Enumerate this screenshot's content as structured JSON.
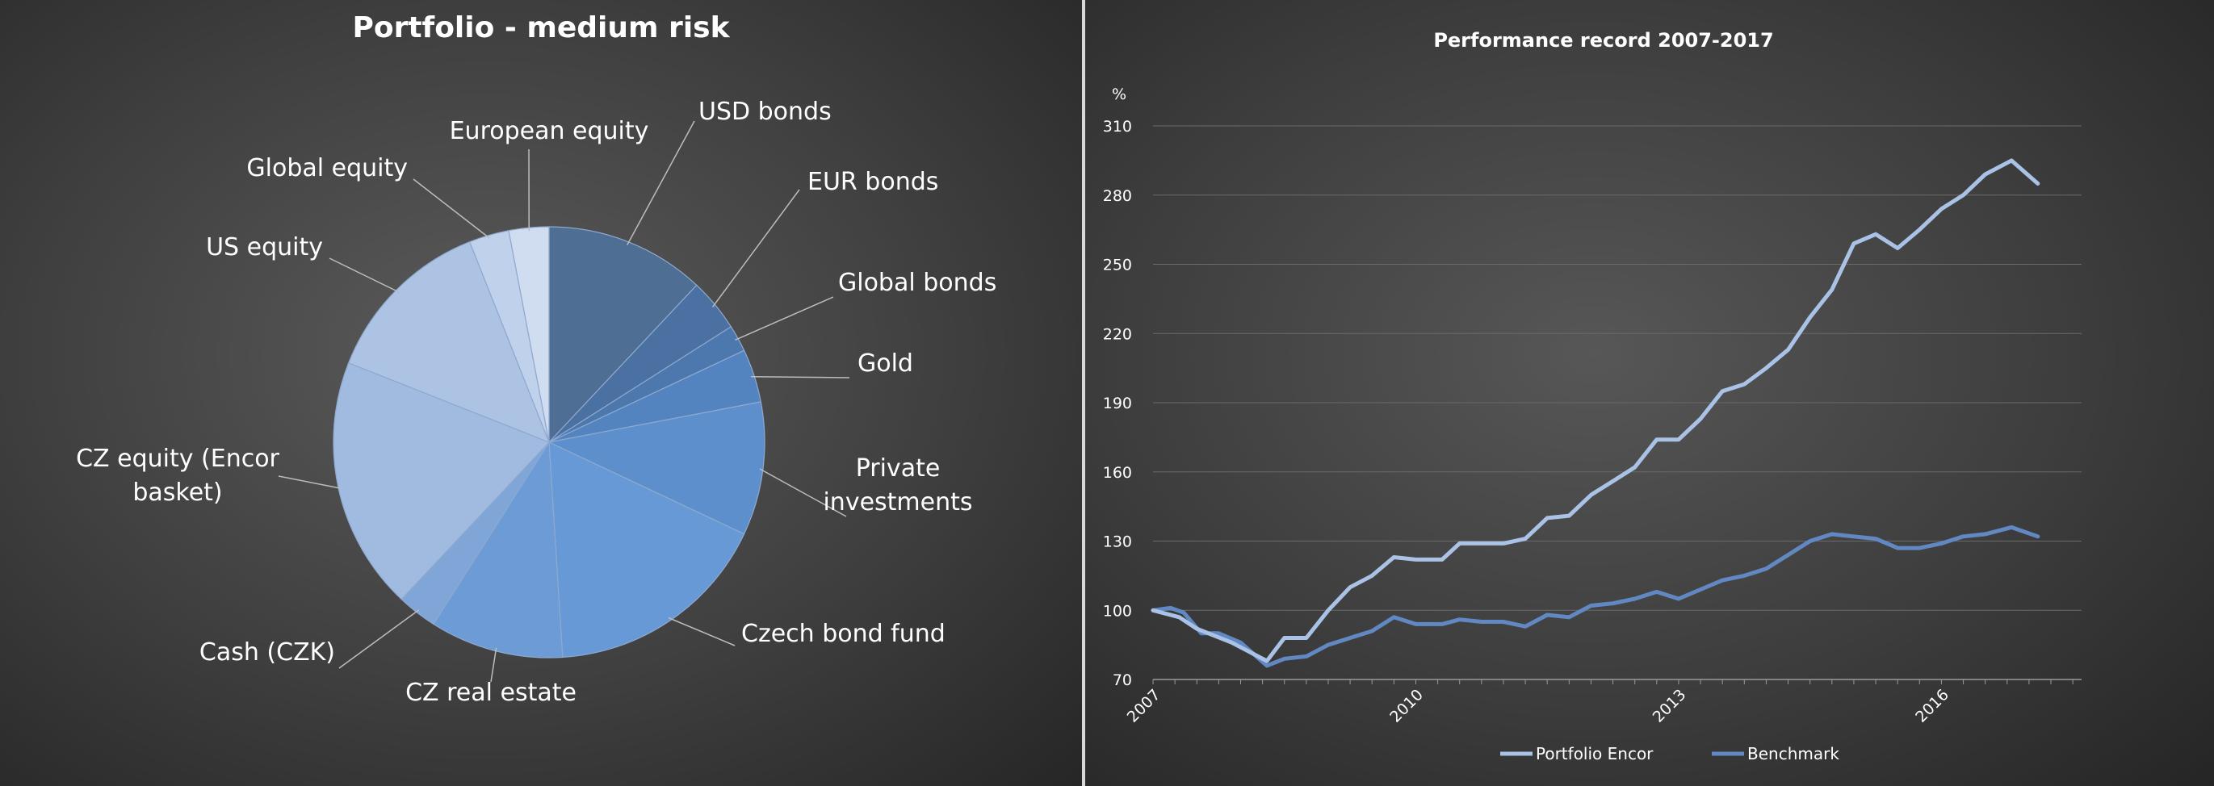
{
  "chart_data": [
    {
      "type": "pie",
      "title": "Portfolio - medium risk",
      "categories": [
        "USD bonds",
        "EUR bonds",
        "Global bonds",
        "Gold",
        "Private investments",
        "Czech bond fund",
        "CZ real estate",
        "Cash (CZK)",
        "CZ equity (Encor basket)",
        "US equity",
        "Global equity",
        "European equity"
      ],
      "label_lines": [
        [
          "USD bonds"
        ],
        [
          "EUR bonds"
        ],
        [
          "Global bonds"
        ],
        [
          "Gold"
        ],
        [
          "Private",
          "investments"
        ],
        [
          "Czech bond fund"
        ],
        [
          "CZ real estate"
        ],
        [
          "Cash (CZK)"
        ],
        [
          "CZ equity (Encor",
          "basket)"
        ],
        [
          "US equity"
        ],
        [
          "Global equity"
        ],
        [
          "European equity"
        ]
      ],
      "values": [
        12,
        4,
        2,
        4,
        10,
        17,
        10,
        3,
        19,
        13,
        3,
        3
      ],
      "colors": [
        "#4f6e93",
        "#4a71a1",
        "#4d78ad",
        "#5384c0",
        "#5d8fcc",
        "#6799d6",
        "#6c9bd6",
        "#7fa6d7",
        "#a0bbdf",
        "#adc3e4",
        "#c0d1ec",
        "#d0dcf0"
      ],
      "unit": "%"
    },
    {
      "type": "line",
      "title": "Performance record 2007-2017",
      "ylabel": "%",
      "ylim": [
        70,
        310
      ],
      "yticks": [
        70,
        100,
        130,
        160,
        190,
        220,
        250,
        280,
        310
      ],
      "xlim": [
        2007,
        2017.6
      ],
      "xticks": [
        "2007",
        "2010",
        "2013",
        "2016"
      ],
      "legend": "bottom",
      "series": [
        {
          "name": "Portfolio Encor",
          "color": "#a9c2e6",
          "points": [
            [
              2007.0,
              100
            ],
            [
              2007.3,
              97
            ],
            [
              2007.5,
              92
            ],
            [
              2007.7,
              89
            ],
            [
              2007.9,
              86
            ],
            [
              2008.1,
              82
            ],
            [
              2008.3,
              78
            ],
            [
              2008.5,
              88
            ],
            [
              2008.75,
              88
            ],
            [
              2009.0,
              100
            ],
            [
              2009.25,
              110
            ],
            [
              2009.5,
              115
            ],
            [
              2009.75,
              123
            ],
            [
              2010.0,
              122
            ],
            [
              2010.3,
              122
            ],
            [
              2010.5,
              129
            ],
            [
              2010.75,
              129
            ],
            [
              2011.0,
              129
            ],
            [
              2011.25,
              131
            ],
            [
              2011.5,
              140
            ],
            [
              2011.75,
              141
            ],
            [
              2012.0,
              150
            ],
            [
              2012.25,
              156
            ],
            [
              2012.5,
              162
            ],
            [
              2012.75,
              174
            ],
            [
              2013.0,
              174
            ],
            [
              2013.25,
              183
            ],
            [
              2013.5,
              195
            ],
            [
              2013.75,
              198
            ],
            [
              2014.0,
              205
            ],
            [
              2014.25,
              213
            ],
            [
              2014.5,
              227
            ],
            [
              2014.75,
              239
            ],
            [
              2015.0,
              259
            ],
            [
              2015.25,
              263
            ],
            [
              2015.5,
              257
            ],
            [
              2015.75,
              265
            ],
            [
              2016.0,
              274
            ],
            [
              2016.25,
              280
            ],
            [
              2016.5,
              289
            ],
            [
              2016.8,
              295
            ],
            [
              2017.1,
              285
            ]
          ]
        },
        {
          "name": "Benchmark",
          "color": "#6288c3",
          "points": [
            [
              2007.0,
              100
            ],
            [
              2007.2,
              101
            ],
            [
              2007.35,
              99
            ],
            [
              2007.55,
              90
            ],
            [
              2007.75,
              90
            ],
            [
              2008.0,
              86
            ],
            [
              2008.15,
              81
            ],
            [
              2008.3,
              76
            ],
            [
              2008.5,
              79
            ],
            [
              2008.75,
              80
            ],
            [
              2009.0,
              85
            ],
            [
              2009.25,
              88
            ],
            [
              2009.5,
              91
            ],
            [
              2009.75,
              97
            ],
            [
              2010.0,
              94
            ],
            [
              2010.3,
              94
            ],
            [
              2010.5,
              96
            ],
            [
              2010.75,
              95
            ],
            [
              2011.0,
              95
            ],
            [
              2011.25,
              93
            ],
            [
              2011.5,
              98
            ],
            [
              2011.75,
              97
            ],
            [
              2012.0,
              102
            ],
            [
              2012.25,
              103
            ],
            [
              2012.5,
              105
            ],
            [
              2012.75,
              108
            ],
            [
              2013.0,
              105
            ],
            [
              2013.25,
              109
            ],
            [
              2013.5,
              113
            ],
            [
              2013.75,
              115
            ],
            [
              2014.0,
              118
            ],
            [
              2014.25,
              124
            ],
            [
              2014.5,
              130
            ],
            [
              2014.75,
              133
            ],
            [
              2015.0,
              132
            ],
            [
              2015.25,
              131
            ],
            [
              2015.5,
              127
            ],
            [
              2015.75,
              127
            ],
            [
              2016.0,
              129
            ],
            [
              2016.25,
              132
            ],
            [
              2016.5,
              133
            ],
            [
              2016.8,
              136
            ],
            [
              2017.1,
              132
            ]
          ]
        }
      ]
    }
  ]
}
